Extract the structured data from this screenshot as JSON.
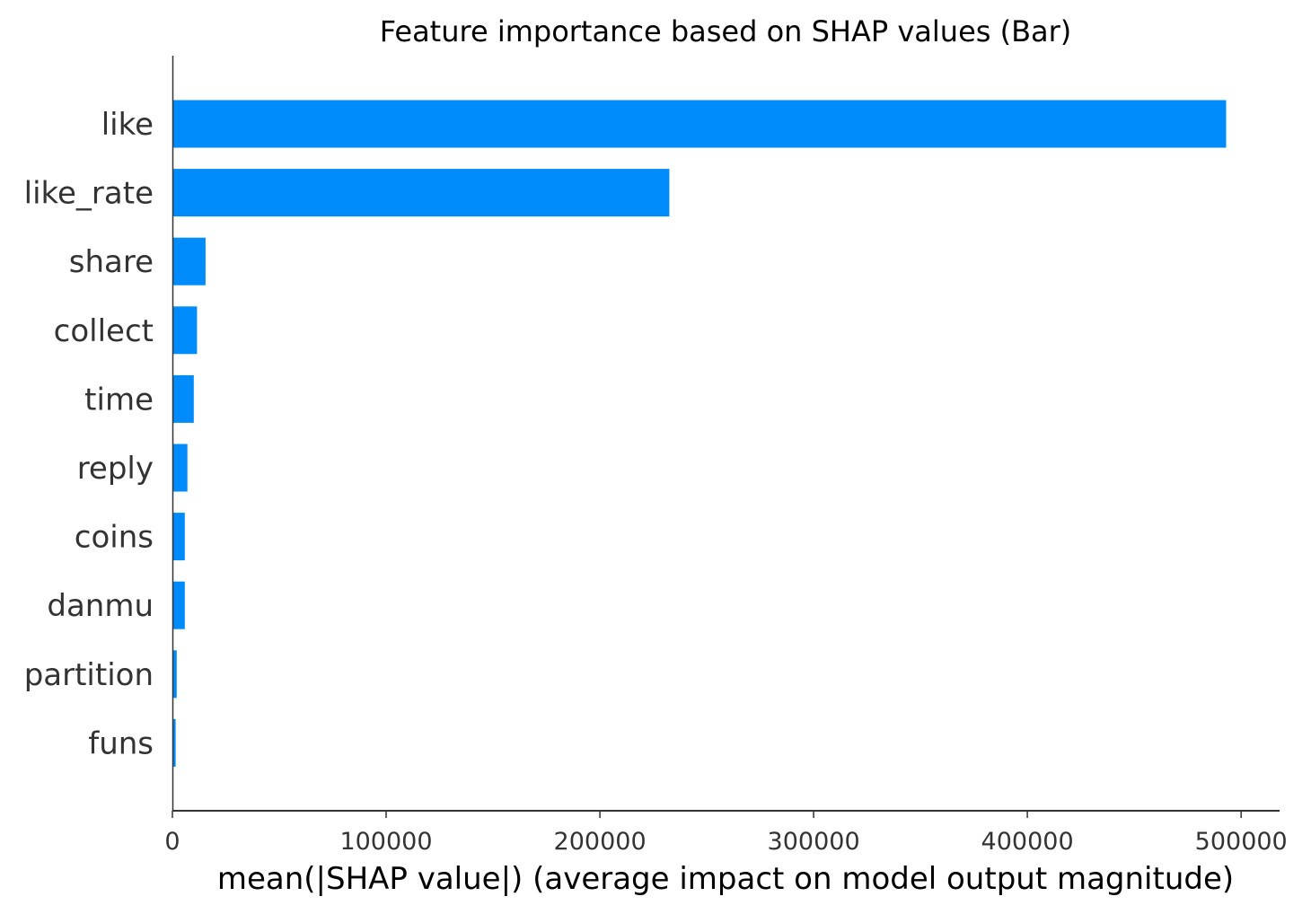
{
  "chart_data": {
    "type": "bar",
    "orientation": "horizontal",
    "title": "Feature importance based on SHAP values (Bar)",
    "xlabel": "mean(|SHAP value|) (average impact on model output magnitude)",
    "ylabel": "",
    "categories": [
      "like",
      "like_rate",
      "share",
      "collect",
      "time",
      "reply",
      "coins",
      "danmu",
      "partition",
      "funs"
    ],
    "values": [
      493000,
      232500,
      15500,
      11500,
      10000,
      7000,
      5800,
      5800,
      2000,
      1500
    ],
    "xlim": [
      0,
      518000
    ],
    "xticks": [
      0,
      100000,
      200000,
      300000,
      400000,
      500000
    ],
    "xtick_labels": [
      "0",
      "100000",
      "200000",
      "300000",
      "400000",
      "500000"
    ],
    "bar_color": "#008bfb",
    "grid": false
  }
}
